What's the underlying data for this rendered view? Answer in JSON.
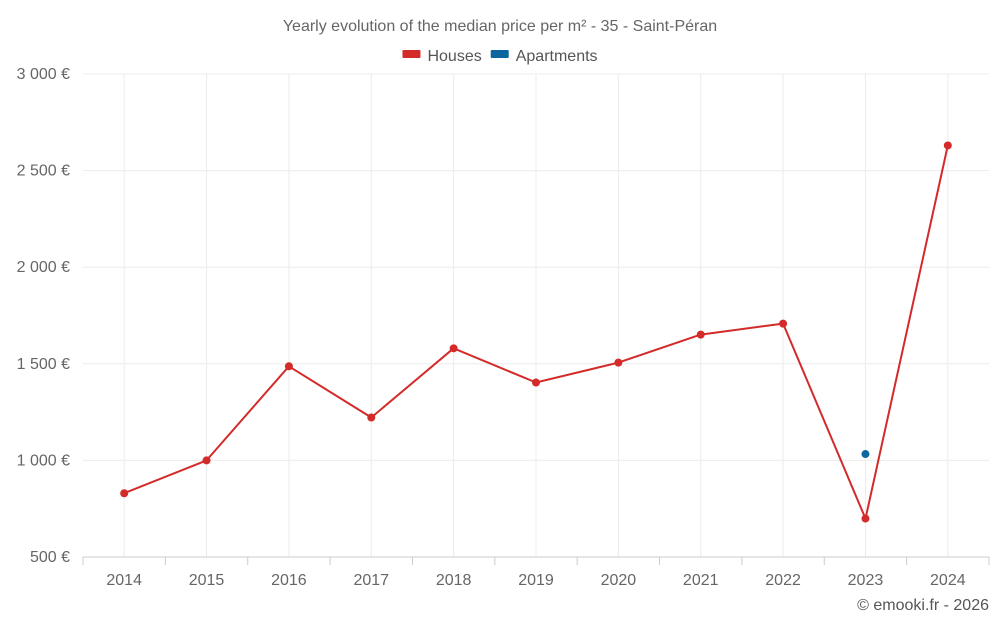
{
  "chart_data": {
    "type": "line",
    "title": "Yearly evolution of the median price per m² - 35 - Saint-Péran",
    "categories": [
      "2014",
      "2015",
      "2016",
      "2017",
      "2018",
      "2019",
      "2020",
      "2021",
      "2022",
      "2023",
      "2024"
    ],
    "series": [
      {
        "name": "Houses",
        "color": "#d32a2a",
        "values": [
          830,
          1000,
          1487,
          1222,
          1580,
          1403,
          1506,
          1651,
          1708,
          699,
          2630
        ]
      },
      {
        "name": "Apartments",
        "color": "#0d679f",
        "values": [
          null,
          null,
          null,
          null,
          null,
          null,
          null,
          null,
          null,
          1033,
          null
        ]
      }
    ],
    "ylim": [
      500,
      3000
    ],
    "yticks": [
      500,
      1000,
      1500,
      2000,
      2500,
      3000
    ],
    "ytick_labels": [
      "500 €",
      "1 000 €",
      "1 500 €",
      "2 000 €",
      "2 500 €",
      "3 000 €"
    ],
    "grid": true,
    "legend_position": "top-center",
    "xlabel": "",
    "ylabel": ""
  },
  "credit": "© emooki.fr - 2026"
}
